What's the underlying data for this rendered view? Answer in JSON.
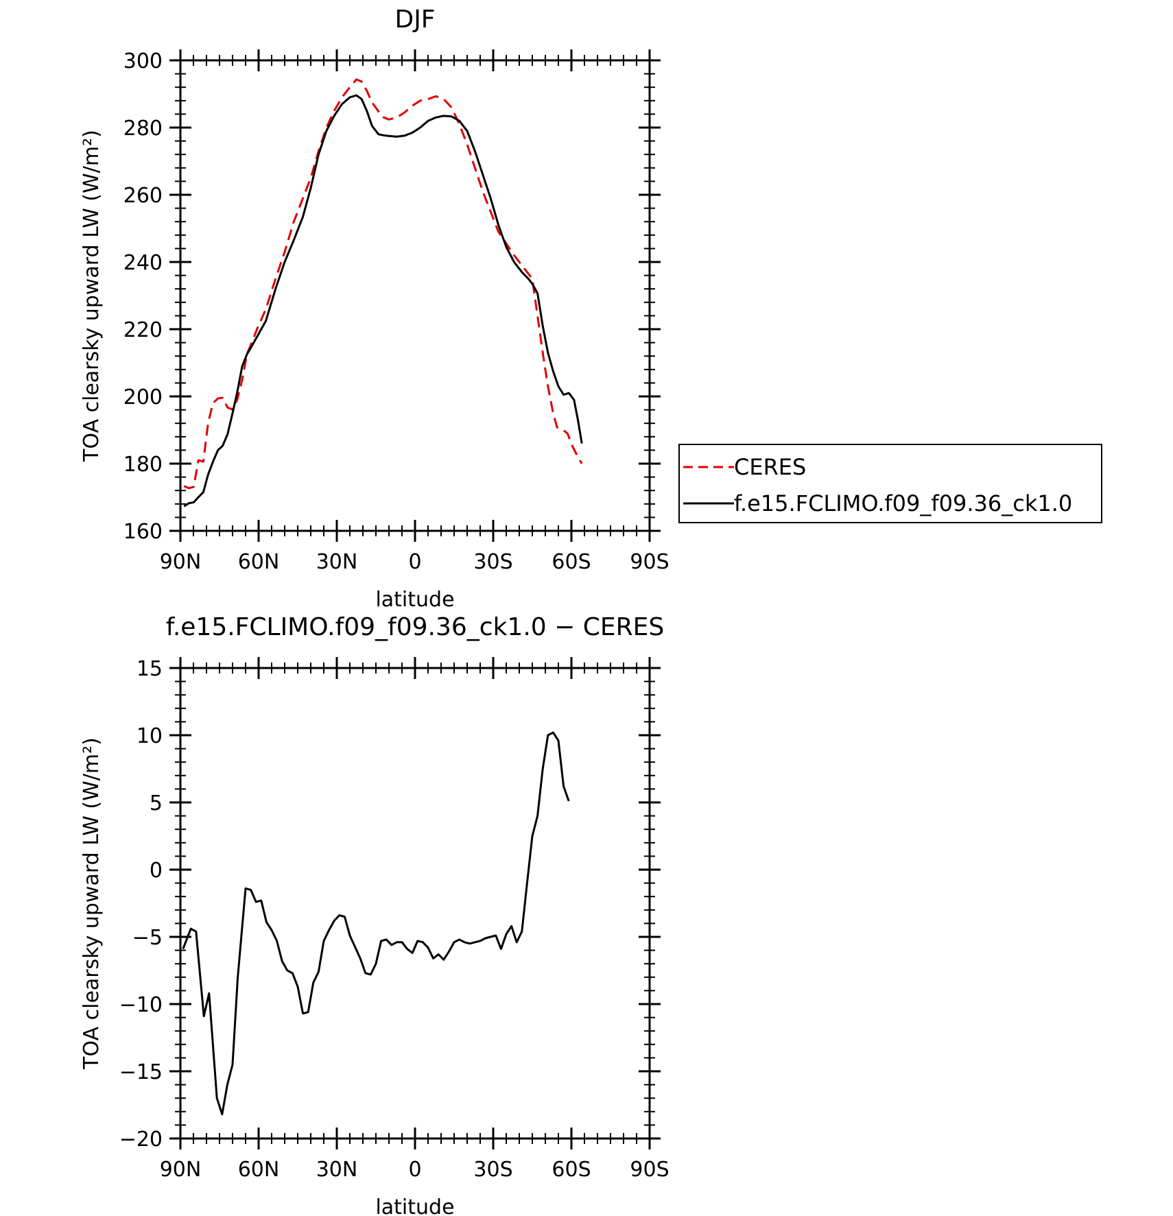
{
  "chart_data": [
    {
      "type": "line",
      "title": "DJF",
      "xlabel": "latitude",
      "ylabel": "TOA clearsky upward LW (W/m²)",
      "xlim": [
        -90,
        90
      ],
      "ylim": [
        160,
        300
      ],
      "xticks": [
        {
          "value": -90,
          "label": "90N"
        },
        {
          "value": -60,
          "label": "60N"
        },
        {
          "value": -30,
          "label": "30N"
        },
        {
          "value": 0,
          "label": "0"
        },
        {
          "value": 30,
          "label": "30S"
        },
        {
          "value": 60,
          "label": "60S"
        },
        {
          "value": 90,
          "label": "90S"
        }
      ],
      "yticks": [
        {
          "value": 160,
          "label": "160"
        },
        {
          "value": 180,
          "label": "180"
        },
        {
          "value": 200,
          "label": "200"
        },
        {
          "value": 220,
          "label": "220"
        },
        {
          "value": 240,
          "label": "240"
        },
        {
          "value": 260,
          "label": "260"
        },
        {
          "value": 280,
          "label": "280"
        },
        {
          "value": 300,
          "label": "300"
        }
      ],
      "grid": false,
      "legend": {
        "placement": "right"
      },
      "series": [
        {
          "name": "CERES",
          "color": "#e00000",
          "dash": "dashed",
          "points": [
            [
              -88.6,
              173.3
            ],
            [
              -86.8,
              172.7
            ],
            [
              -84.9,
              173.1
            ],
            [
              -83.1,
              181
            ],
            [
              -81.2,
              180.6
            ],
            [
              -79.4,
              192
            ],
            [
              -77.5,
              198
            ],
            [
              -75.6,
              199.4
            ],
            [
              -73.8,
              199.6
            ],
            [
              -71.9,
              196.7
            ],
            [
              -70,
              196.1
            ],
            [
              -68.2,
              199
            ],
            [
              -66.3,
              205
            ],
            [
              -64.5,
              212.6
            ],
            [
              -62.6,
              216
            ],
            [
              -60.8,
              219.7
            ],
            [
              -57.2,
              226
            ],
            [
              -53.5,
              235
            ],
            [
              -50,
              243
            ],
            [
              -46.5,
              252
            ],
            [
              -43,
              259
            ],
            [
              -40,
              265
            ],
            [
              -37,
              273
            ],
            [
              -34,
              280
            ],
            [
              -31,
              285
            ],
            [
              -28,
              289
            ],
            [
              -25,
              292
            ],
            [
              -22.5,
              294.3
            ],
            [
              -20.5,
              293.7
            ],
            [
              -18.5,
              291
            ],
            [
              -16.5,
              287.5
            ],
            [
              -14,
              284.8
            ],
            [
              -12,
              283
            ],
            [
              -10,
              282.4
            ],
            [
              -7,
              283
            ],
            [
              -4,
              284.5
            ],
            [
              -1,
              286.5
            ],
            [
              2,
              288
            ],
            [
              5,
              288.5
            ],
            [
              8,
              289.3
            ],
            [
              11,
              288.5
            ],
            [
              14,
              286
            ],
            [
              17,
              281
            ],
            [
              20,
              275
            ],
            [
              23,
              268
            ],
            [
              26,
              261
            ],
            [
              29,
              255
            ],
            [
              32,
              249
            ],
            [
              35,
              245.5
            ],
            [
              38,
              242
            ],
            [
              41,
              239
            ],
            [
              43.5,
              236.5
            ],
            [
              45,
              235
            ],
            [
              47,
              224
            ],
            [
              49,
              213
            ],
            [
              51,
              203
            ],
            [
              53,
              195
            ],
            [
              54.5,
              190.8
            ],
            [
              56.5,
              190.2
            ],
            [
              58.5,
              189
            ],
            [
              60.5,
              185
            ],
            [
              62.5,
              182
            ],
            [
              64,
              180
            ]
          ]
        },
        {
          "name": "f.e15.FCLIMO.f09_f09.36_ck1.0",
          "color": "#000000",
          "dash": "solid",
          "points": [
            [
              -88.6,
              167.3
            ],
            [
              -86.8,
              168.2
            ],
            [
              -84.9,
              168.5
            ],
            [
              -83.1,
              170
            ],
            [
              -81.2,
              171.5
            ],
            [
              -79.4,
              176.7
            ],
            [
              -77.5,
              180.6
            ],
            [
              -75.6,
              184
            ],
            [
              -73.8,
              185.3
            ],
            [
              -71.9,
              188.8
            ],
            [
              -70,
              195
            ],
            [
              -68.2,
              201.2
            ],
            [
              -66.3,
              209
            ],
            [
              -64.5,
              212.5
            ],
            [
              -62.6,
              215
            ],
            [
              -60.8,
              217.5
            ],
            [
              -57.2,
              222.5
            ],
            [
              -53.5,
              232
            ],
            [
              -50,
              240
            ],
            [
              -46.5,
              246.5
            ],
            [
              -43,
              253.5
            ],
            [
              -40,
              262
            ],
            [
              -37,
              272
            ],
            [
              -34,
              279
            ],
            [
              -31,
              283.5
            ],
            [
              -28,
              287
            ],
            [
              -25,
              289
            ],
            [
              -22.5,
              289.6
            ],
            [
              -20.5,
              288.5
            ],
            [
              -18.5,
              285
            ],
            [
              -16.5,
              280.5
            ],
            [
              -14,
              278
            ],
            [
              -12,
              277.7
            ],
            [
              -10,
              277.5
            ],
            [
              -7,
              277.3
            ],
            [
              -4,
              277.6
            ],
            [
              -1,
              278.5
            ],
            [
              2,
              280
            ],
            [
              5,
              282
            ],
            [
              8,
              283
            ],
            [
              11,
              283.5
            ],
            [
              14,
              283.3
            ],
            [
              17,
              282
            ],
            [
              20,
              279
            ],
            [
              23,
              273
            ],
            [
              26,
              266
            ],
            [
              29,
              259
            ],
            [
              32,
              251
            ],
            [
              35,
              244.5
            ],
            [
              38,
              240
            ],
            [
              41,
              237
            ],
            [
              43.5,
              235
            ],
            [
              45,
              233.5
            ],
            [
              47,
              230.7
            ],
            [
              49,
              221
            ],
            [
              51,
              213
            ],
            [
              53,
              207.5
            ],
            [
              55,
              203
            ],
            [
              57,
              200.5
            ],
            [
              59,
              201
            ],
            [
              61,
              199
            ],
            [
              62.5,
              193
            ],
            [
              64,
              186
            ]
          ]
        }
      ]
    },
    {
      "type": "line",
      "title": "f.e15.FCLIMO.f09_f09.36_ck1.0 − CERES",
      "xlabel": "latitude",
      "ylabel": "TOA clearsky upward LW (W/m²)",
      "xlim": [
        -90,
        90
      ],
      "ylim": [
        -20,
        15
      ],
      "xticks": [
        {
          "value": -90,
          "label": "90N"
        },
        {
          "value": -60,
          "label": "60N"
        },
        {
          "value": -30,
          "label": "30N"
        },
        {
          "value": 0,
          "label": "0"
        },
        {
          "value": 30,
          "label": "30S"
        },
        {
          "value": 60,
          "label": "60S"
        },
        {
          "value": 90,
          "label": "90S"
        }
      ],
      "yticks": [
        {
          "value": -20,
          "label": "−20"
        },
        {
          "value": -15,
          "label": "−15"
        },
        {
          "value": -10,
          "label": "−10"
        },
        {
          "value": -5,
          "label": "−5"
        },
        {
          "value": 0,
          "label": "0"
        },
        {
          "value": 5,
          "label": "5"
        },
        {
          "value": 10,
          "label": "10"
        },
        {
          "value": 15,
          "label": "15"
        }
      ],
      "grid": false,
      "series": [
        {
          "color": "#000000",
          "dash": "solid",
          "points": [
            [
              -89,
              -5.9
            ],
            [
              -86,
              -4.4
            ],
            [
              -84,
              -4.6
            ],
            [
              -81,
              -10.9
            ],
            [
              -79,
              -9.2
            ],
            [
              -76,
              -17
            ],
            [
              -74,
              -18.2
            ],
            [
              -72,
              -16
            ],
            [
              -70,
              -14.5
            ],
            [
              -68,
              -8
            ],
            [
              -65,
              -1.4
            ],
            [
              -63,
              -1.5
            ],
            [
              -61,
              -2.4
            ],
            [
              -59,
              -2.3
            ],
            [
              -57,
              -3.9
            ],
            [
              -55,
              -4.5
            ],
            [
              -53,
              -5.3
            ],
            [
              -51,
              -6.8
            ],
            [
              -49,
              -7.5
            ],
            [
              -47,
              -7.7
            ],
            [
              -45,
              -8.7
            ],
            [
              -43,
              -10.7
            ],
            [
              -41,
              -10.6
            ],
            [
              -39,
              -8.4
            ],
            [
              -37,
              -7.6
            ],
            [
              -35,
              -5.3
            ],
            [
              -33,
              -4.5
            ],
            [
              -31,
              -3.8
            ],
            [
              -29,
              -3.4
            ],
            [
              -27,
              -3.5
            ],
            [
              -25,
              -4.9
            ],
            [
              -21,
              -6.6
            ],
            [
              -19,
              -7.7
            ],
            [
              -17,
              -7.8
            ],
            [
              -15,
              -7
            ],
            [
              -13,
              -5.3
            ],
            [
              -11,
              -5.2
            ],
            [
              -9,
              -5.6
            ],
            [
              -7,
              -5.4
            ],
            [
              -5,
              -5.4
            ],
            [
              -3,
              -5.9
            ],
            [
              -1,
              -6.2
            ],
            [
              1,
              -5.3
            ],
            [
              3,
              -5.4
            ],
            [
              5,
              -5.8
            ],
            [
              7,
              -6.6
            ],
            [
              9,
              -6.3
            ],
            [
              11,
              -6.7
            ],
            [
              13,
              -6.1
            ],
            [
              15,
              -5.4
            ],
            [
              17,
              -5.2
            ],
            [
              19,
              -5.4
            ],
            [
              21,
              -5.5
            ],
            [
              23,
              -5.4
            ],
            [
              25,
              -5.3
            ],
            [
              27,
              -5.1
            ],
            [
              31,
              -4.9
            ],
            [
              33,
              -5.9
            ],
            [
              35,
              -4.8
            ],
            [
              37,
              -4.2
            ],
            [
              39,
              -5.4
            ],
            [
              41,
              -4.6
            ],
            [
              43,
              -1
            ],
            [
              45,
              2.5
            ],
            [
              47,
              4
            ],
            [
              49,
              7.5
            ],
            [
              51,
              10
            ],
            [
              53,
              10.2
            ],
            [
              55,
              9.6
            ],
            [
              57,
              6.2
            ],
            [
              59,
              5.1
            ]
          ]
        }
      ]
    }
  ]
}
